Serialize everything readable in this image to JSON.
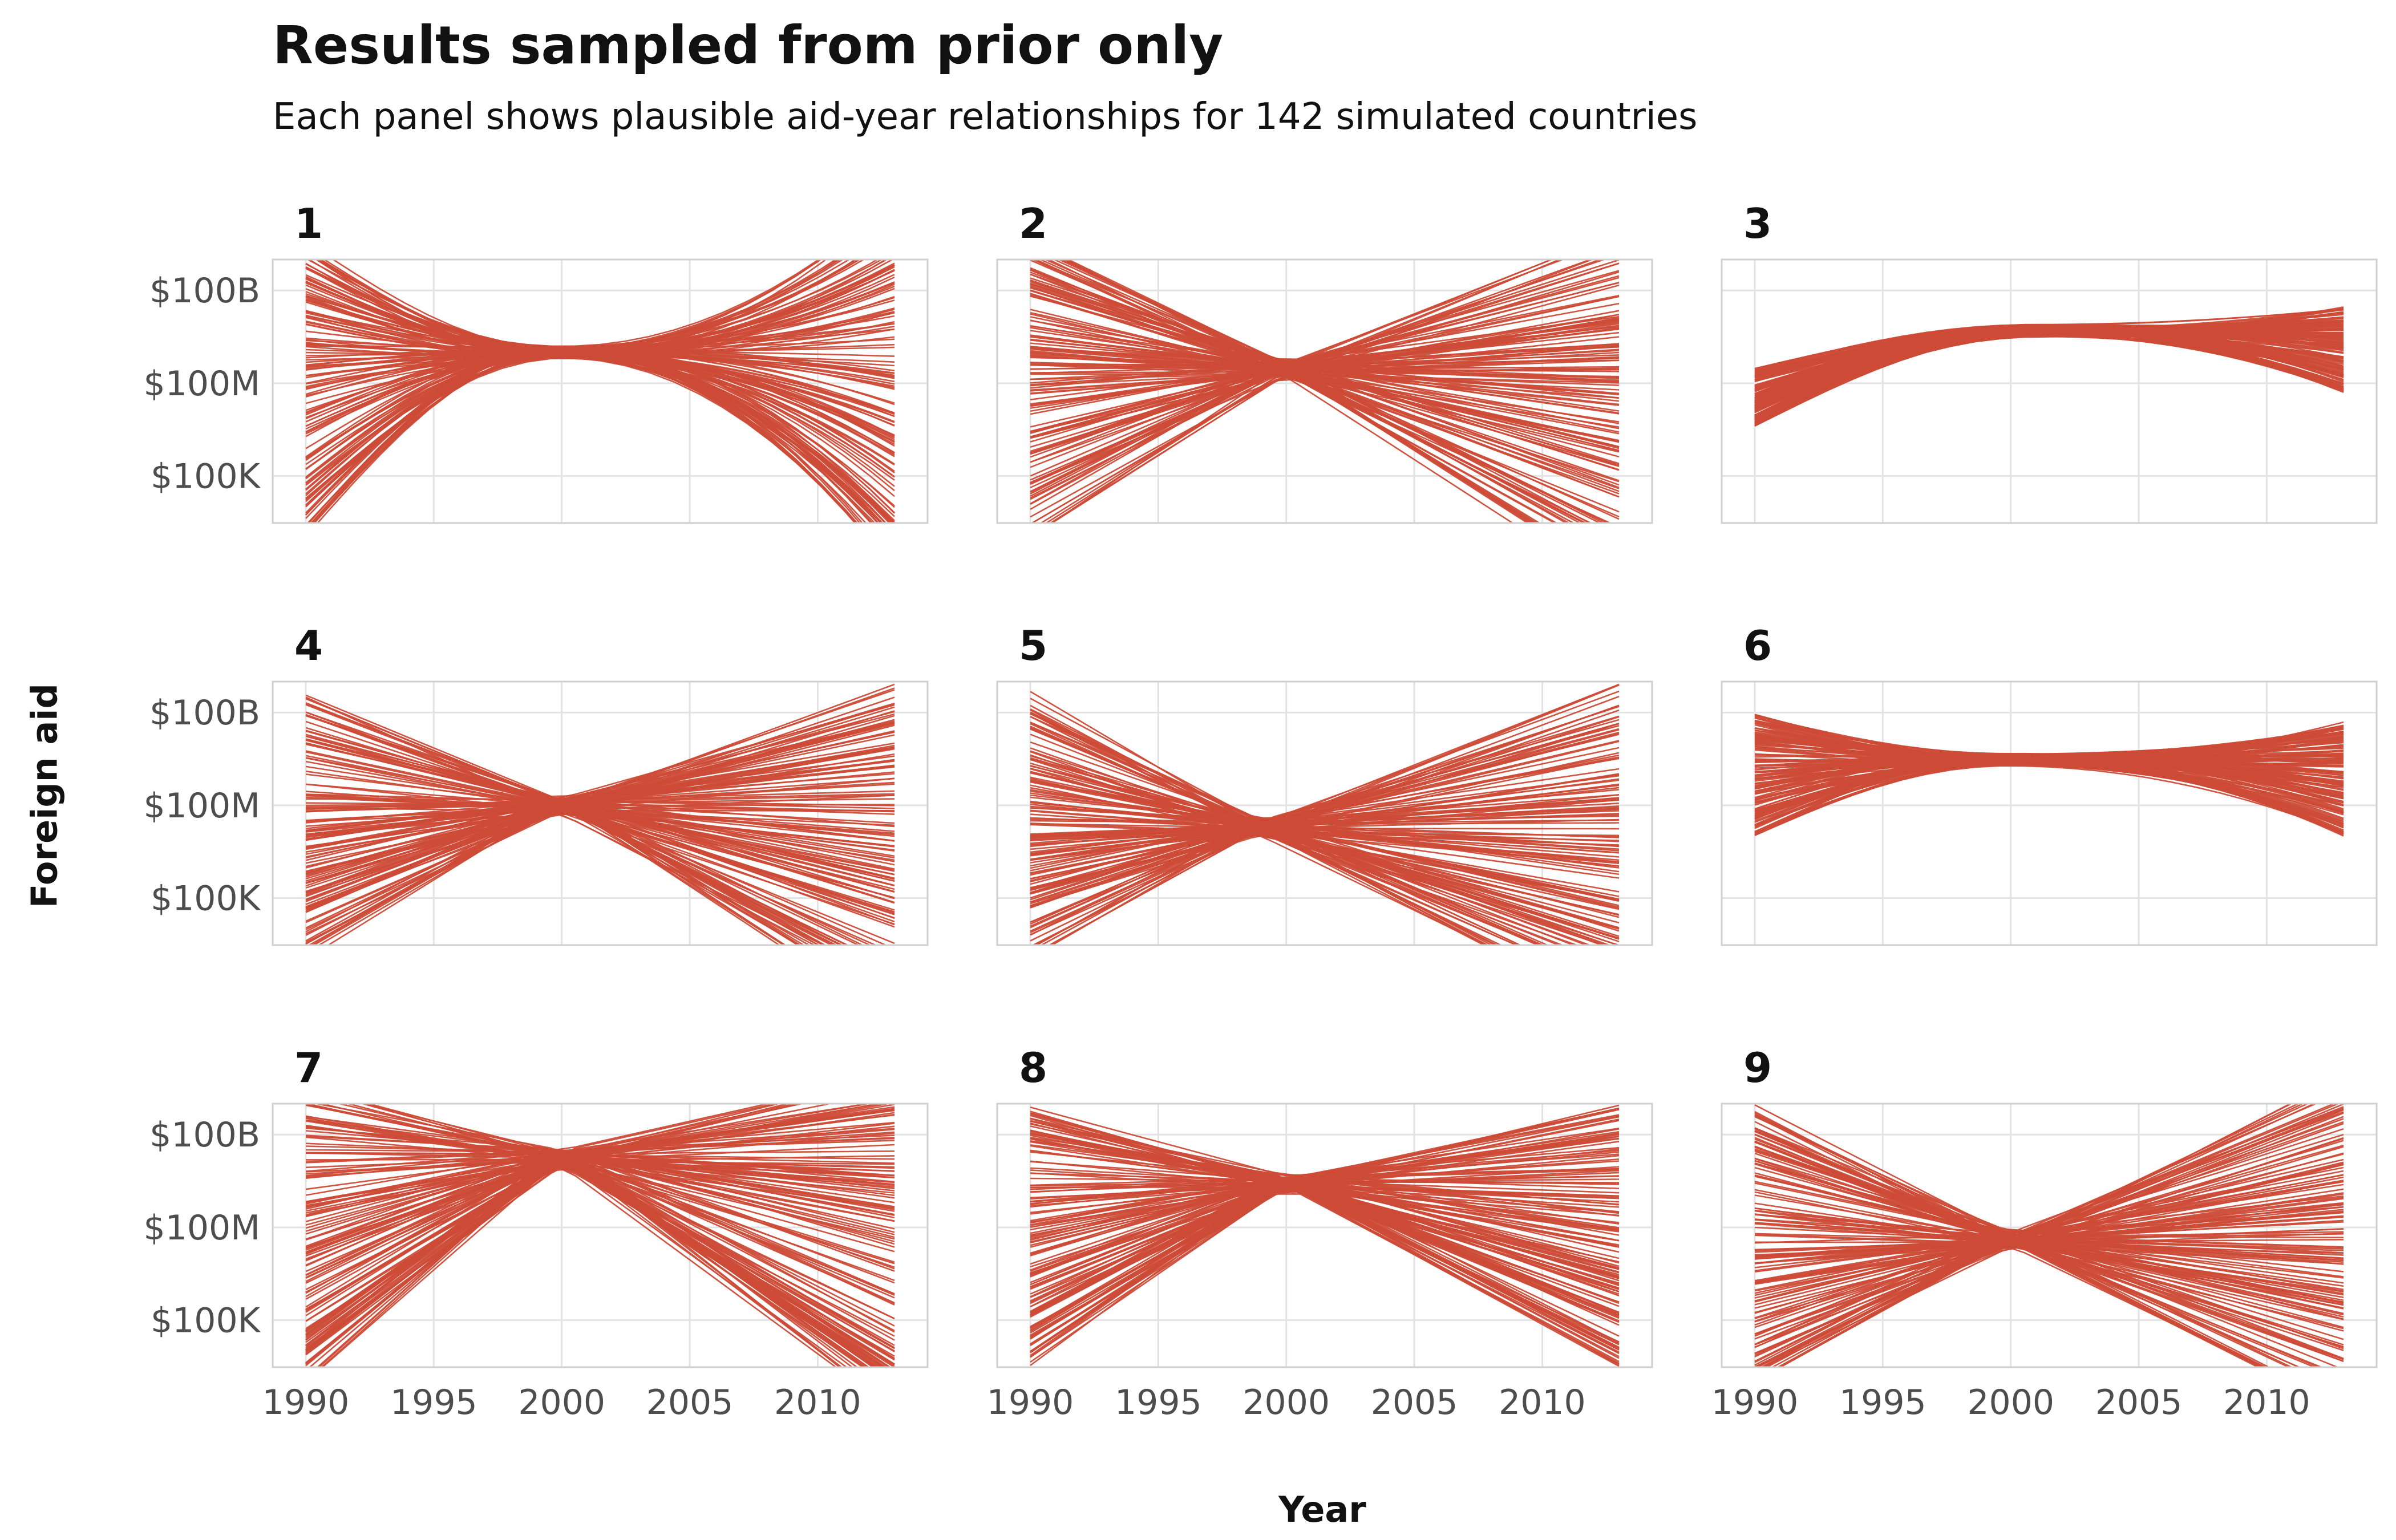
{
  "title": "Results sampled from prior only",
  "subtitle": "Each panel shows plausible aid-year relationships for 142 simulated countries",
  "colors": {
    "line": "#cc4b37",
    "grid": "#e3e3e3",
    "frame": "#cfcfcf",
    "tick_text": "#4d4d4d"
  },
  "chart_data": {
    "type": "line",
    "facet_layout": "3x3 grid",
    "xlabel": "Year",
    "ylabel": "Foreign aid",
    "x_ticks": [
      1990,
      1995,
      2000,
      2005,
      2010
    ],
    "xlim": [
      1990,
      2013
    ],
    "y_scale": "log10",
    "y_ticks": [
      {
        "value": 100000,
        "label": "$100K"
      },
      {
        "value": 100000000,
        "label": "$100M"
      },
      {
        "value": 100000000000,
        "label": "$100B"
      }
    ],
    "ylim": [
      3000,
      1000000000000
    ],
    "grid": true,
    "lines_per_panel": 142,
    "panels": [
      {
        "label": "1",
        "pivot_year": 2000,
        "pivot_value": 1000000000,
        "start_value_range": [
          1000,
          5000000000000
        ],
        "end_value_range": [
          50,
          100000000000000
        ],
        "curved": true
      },
      {
        "label": "2",
        "pivot_year": 2000,
        "pivot_value": 300000000,
        "start_value_range": [
          1000,
          5000000000000
        ],
        "end_value_range": [
          10,
          10000000000000
        ],
        "curved": false
      },
      {
        "label": "3",
        "pivot_year": 2001,
        "pivot_value": 5000000000,
        "start_value_range": [
          4000000,
          300000000
        ],
        "end_value_range": [
          50000000,
          30000000000
        ],
        "curved": true
      },
      {
        "label": "4",
        "pivot_year": 2000,
        "pivot_value": 100000000,
        "start_value_range": [
          1000,
          500000000000
        ],
        "end_value_range": [
          10,
          1000000000000
        ],
        "curved": false
      },
      {
        "label": "5",
        "pivot_year": 1999,
        "pivot_value": 20000000,
        "start_value_range": [
          1000,
          500000000000
        ],
        "end_value_range": [
          10,
          1000000000000
        ],
        "curved": false
      },
      {
        "label": "6",
        "pivot_year": 2000,
        "pivot_value": 3000000000,
        "start_value_range": [
          10000000,
          100000000000
        ],
        "end_value_range": [
          10000000,
          50000000000
        ],
        "curved": true
      },
      {
        "label": "7",
        "pivot_year": 2000,
        "pivot_value": 20000000000,
        "start_value_range": [
          1000,
          5000000000000
        ],
        "end_value_range": [
          100,
          10000000000000
        ],
        "curved": false
      },
      {
        "label": "8",
        "pivot_year": 2000,
        "pivot_value": 3000000000,
        "start_value_range": [
          3000,
          1000000000000
        ],
        "end_value_range": [
          3000,
          1000000000000
        ],
        "curved": false
      },
      {
        "label": "9",
        "pivot_year": 2000,
        "pivot_value": 40000000,
        "start_value_range": [
          1000,
          1000000000000
        ],
        "end_value_range": [
          100,
          10000000000000
        ],
        "curved": false
      }
    ]
  }
}
